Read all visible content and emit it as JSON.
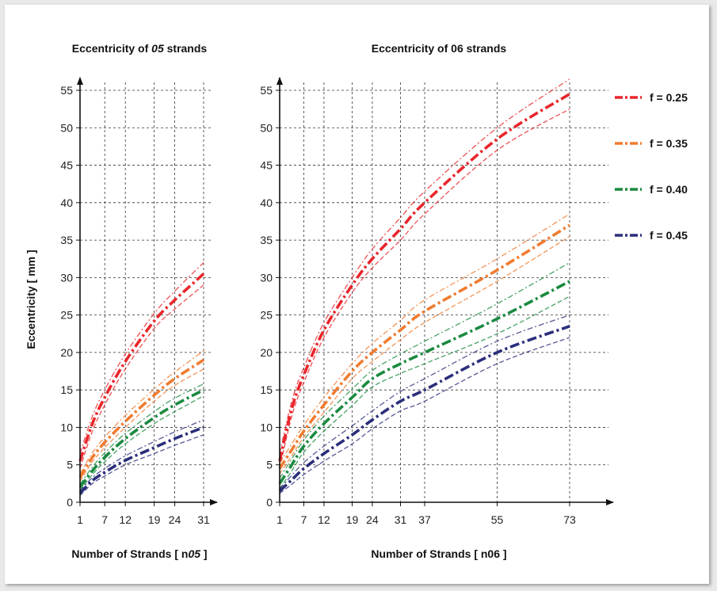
{
  "figure": {
    "ylabel": "Eccentricity  [ mm ]"
  },
  "chart_data": [
    {
      "type": "line",
      "title_prefix": "Eccentricity of ",
      "title_italic": "05",
      "title_suffix": " strands",
      "xlabel_prefix": "Number of Strands  [ n",
      "xlabel_italic": "05",
      "xlabel_suffix": " ]",
      "ylabel": "Eccentricity  [ mm ]",
      "x_ticks": [
        1,
        7,
        12,
        19,
        24,
        31
      ],
      "y_ticks": [
        0,
        5,
        10,
        15,
        20,
        25,
        30,
        35,
        40,
        45,
        50,
        55
      ],
      "xlim": [
        1,
        31
      ],
      "ylim": [
        0,
        55
      ],
      "grid": true,
      "series": [
        {
          "name": "f = 0.25",
          "color": "#e8262b",
          "x": [
            1,
            4,
            7,
            12,
            19,
            24,
            31
          ],
          "values": [
            5.5,
            10.5,
            14.0,
            18.8,
            24.2,
            27.0,
            30.5
          ],
          "upper": [
            6.5,
            11.5,
            15.0,
            19.8,
            25.2,
            28.2,
            32.0
          ],
          "lower": [
            4.5,
            9.5,
            13.0,
            17.8,
            23.2,
            25.8,
            29.0
          ]
        },
        {
          "name": "f = 0.35",
          "color": "#f07b2f",
          "x": [
            1,
            4,
            7,
            12,
            19,
            24,
            31
          ],
          "values": [
            3.3,
            6.0,
            8.0,
            10.8,
            14.3,
            16.5,
            19.0
          ],
          "upper": [
            3.8,
            6.6,
            8.7,
            11.6,
            15.1,
            17.4,
            20.2
          ],
          "lower": [
            2.8,
            5.4,
            7.3,
            10.0,
            13.5,
            15.6,
            17.8
          ]
        },
        {
          "name": "f = 0.40",
          "color": "#1a8a3f",
          "x": [
            1,
            4,
            7,
            12,
            19,
            24,
            31
          ],
          "values": [
            2.0,
            4.2,
            6.0,
            8.5,
            11.3,
            13.0,
            15.0
          ],
          "upper": [
            2.4,
            4.7,
            6.6,
            9.2,
            12.1,
            13.9,
            15.8
          ],
          "lower": [
            1.6,
            3.7,
            5.4,
            7.8,
            10.5,
            12.1,
            14.2
          ]
        },
        {
          "name": "f = 0.45",
          "color": "#2b2e7a",
          "x": [
            1,
            4,
            7,
            12,
            19,
            24,
            31
          ],
          "values": [
            1.2,
            2.9,
            4.0,
            5.6,
            7.3,
            8.5,
            10.0
          ],
          "upper": [
            1.5,
            3.3,
            4.5,
            6.2,
            8.1,
            9.4,
            11.0
          ],
          "lower": [
            0.9,
            2.5,
            3.5,
            5.0,
            6.5,
            7.6,
            9.0
          ]
        }
      ]
    },
    {
      "type": "line",
      "title": "Eccentricity of 06 strands",
      "xlabel": "Number of Strands  [ n06 ]",
      "ylabel": "",
      "x_ticks": [
        1,
        7,
        12,
        19,
        24,
        31,
        37,
        55,
        73
      ],
      "y_ticks": [
        0,
        5,
        10,
        15,
        20,
        25,
        30,
        35,
        40,
        45,
        50,
        55
      ],
      "xlim": [
        1,
        73
      ],
      "ylim": [
        0,
        55
      ],
      "grid": true,
      "legend": "right",
      "series": [
        {
          "name": "f = 0.25",
          "color": "#e8262b",
          "x": [
            1,
            4,
            7,
            12,
            19,
            24,
            31,
            37,
            55,
            73
          ],
          "values": [
            5.5,
            12.5,
            17.0,
            23.0,
            29.0,
            32.5,
            36.5,
            40.0,
            48.5,
            54.5
          ],
          "upper": [
            6.5,
            13.5,
            18.0,
            24.0,
            30.0,
            33.8,
            38.0,
            41.5,
            50.0,
            56.5
          ],
          "lower": [
            4.5,
            11.5,
            16.0,
            22.0,
            28.0,
            31.3,
            35.0,
            38.5,
            47.0,
            52.5
          ]
        },
        {
          "name": "f = 0.35",
          "color": "#f07b2f",
          "x": [
            1,
            4,
            7,
            12,
            19,
            24,
            31,
            37,
            55,
            73
          ],
          "values": [
            4.5,
            7.0,
            9.5,
            13.0,
            17.5,
            20.0,
            23.0,
            25.5,
            31.0,
            37.0
          ],
          "upper": [
            5.2,
            7.8,
            10.3,
            14.0,
            18.5,
            21.2,
            24.3,
            27.0,
            32.5,
            38.5
          ],
          "lower": [
            3.8,
            6.2,
            8.7,
            12.0,
            16.5,
            18.8,
            21.7,
            24.0,
            29.5,
            35.5
          ]
        },
        {
          "name": "f = 0.40",
          "color": "#1a8a3f",
          "x": [
            1,
            4,
            7,
            12,
            19,
            24,
            31,
            37,
            55,
            73
          ],
          "values": [
            2.5,
            5.0,
            7.5,
            10.5,
            14.0,
            16.5,
            18.5,
            20.0,
            24.5,
            29.5
          ],
          "upper": [
            3.2,
            5.8,
            8.3,
            11.5,
            15.1,
            17.6,
            19.8,
            21.5,
            26.5,
            32.0
          ],
          "lower": [
            1.8,
            4.2,
            6.7,
            9.5,
            12.9,
            15.4,
            17.2,
            18.5,
            22.5,
            27.5
          ]
        },
        {
          "name": "f = 0.45",
          "color": "#2b2e7a",
          "x": [
            1,
            4,
            7,
            12,
            19,
            24,
            31,
            37,
            55,
            73
          ],
          "values": [
            1.5,
            3.0,
            4.5,
            6.5,
            9.0,
            11.0,
            13.5,
            15.0,
            20.0,
            23.5
          ],
          "upper": [
            1.8,
            3.6,
            5.3,
            7.5,
            10.2,
            12.2,
            14.8,
            16.5,
            21.5,
            25.0
          ],
          "lower": [
            1.2,
            2.4,
            3.7,
            5.5,
            7.8,
            9.8,
            12.2,
            13.5,
            18.5,
            22.0
          ]
        }
      ]
    }
  ]
}
